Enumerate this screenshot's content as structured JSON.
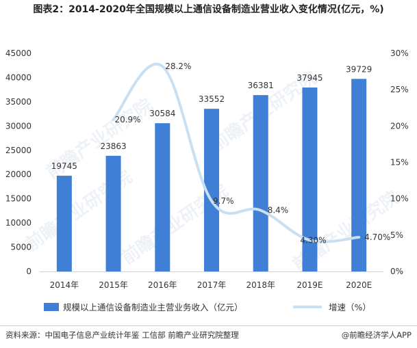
{
  "title": "图表2：2014-2020年全国规模以上通信设备制造业营业收入变化情况(亿元，%)",
  "source": "资料来源：中国电子信息产业统计年鉴 工信部 前瞻产业研究院整理",
  "brand": "@前瞻经济学人APP",
  "watermark": "前瞻产业研究院",
  "colors": {
    "bar": "#3f7fd6",
    "line": "#c9dff2",
    "axis": "#d0d0d0",
    "text": "#333333"
  },
  "chart_data": {
    "type": "bar",
    "title": "图表2：2014-2020年全国规模以上通信设备制造业营业收入变化情况(亿元，%)",
    "categories": [
      "2014年",
      "2015年",
      "2016年",
      "2017年",
      "2018年",
      "2019E",
      "2020E"
    ],
    "series": [
      {
        "name": "规模以上通信设备制造业主营业务收入（亿元）",
        "type": "bar",
        "axis": "left",
        "values": [
          19745,
          23863,
          30584,
          33552,
          36381,
          37945,
          39729
        ],
        "labels": [
          "19745",
          "23863",
          "30584",
          "33552",
          "36381",
          "37945",
          "39729"
        ]
      },
      {
        "name": "增速（%）",
        "type": "line",
        "axis": "right",
        "values": [
          null,
          20.9,
          28.2,
          9.7,
          8.4,
          4.3,
          4.7
        ],
        "labels": [
          "",
          "20.9%",
          "28.2%",
          "9.7%",
          "8.4%",
          "4.30%",
          "4.70%"
        ]
      }
    ],
    "left_axis": {
      "min": 0,
      "max": 45000,
      "step": 5000,
      "ticks": [
        "0",
        "5000",
        "10000",
        "15000",
        "20000",
        "25000",
        "30000",
        "35000",
        "40000",
        "45000"
      ]
    },
    "right_axis": {
      "min": 0,
      "max": 30,
      "step": 5,
      "ticks": [
        "0%",
        "5%",
        "10%",
        "15%",
        "20%",
        "25%",
        "30%"
      ]
    },
    "grid": false,
    "legend_position": "bottom"
  }
}
